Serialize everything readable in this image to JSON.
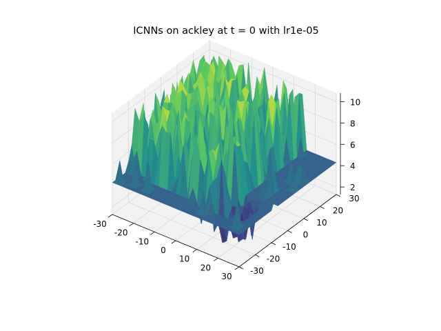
{
  "chart_data": {
    "type": "surface3d",
    "title": "ICNNs on ackley at t = 0 with lr1e-05",
    "colormap": "viridis",
    "colormap_stops": [
      "#440154",
      "#3b528b",
      "#21908d",
      "#5dc962",
      "#fde725"
    ],
    "x": {
      "label": "",
      "range": [
        -30,
        30
      ],
      "ticks": [
        -30,
        -20,
        -10,
        0,
        10,
        20,
        30
      ]
    },
    "y": {
      "label": "",
      "range": [
        -30,
        30
      ],
      "ticks": [
        -30,
        -20,
        -10,
        0,
        10,
        20,
        30
      ]
    },
    "z": {
      "label": "",
      "range": [
        1.3,
        10.8
      ],
      "ticks": [
        2,
        4,
        6,
        8,
        10
      ]
    },
    "surface_summary": {
      "baseline": 4.3,
      "typical_peak_range": [
        6,
        10.6
      ],
      "deep_dip_min": 1.3
    },
    "grid": true
  }
}
